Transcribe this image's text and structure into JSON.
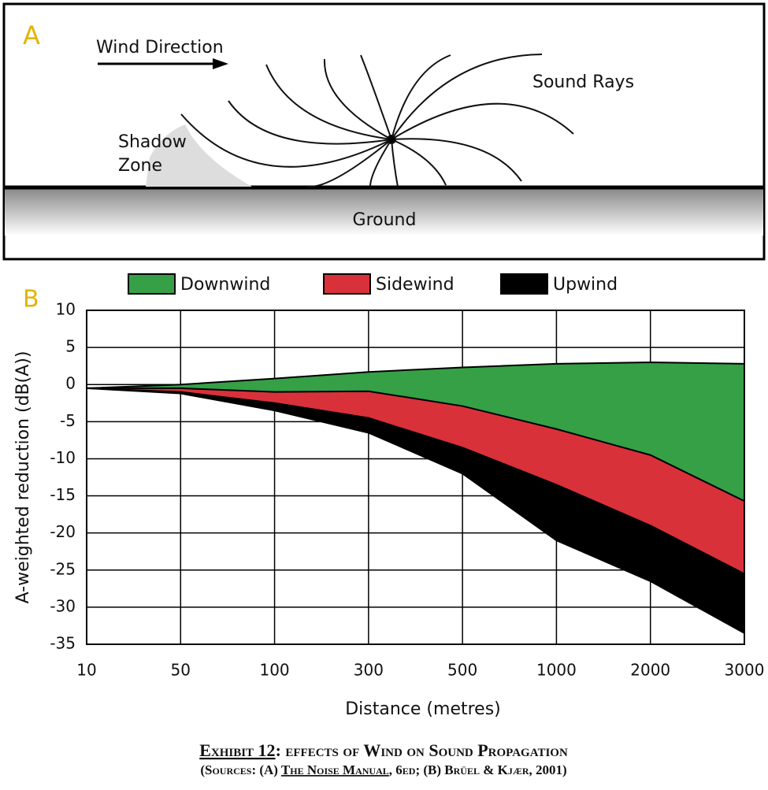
{
  "diagram": {
    "label": "A",
    "wind_direction": "Wind Direction",
    "sound_rays": "Sound Rays",
    "shadow_zone": [
      "Shadow",
      "Zone"
    ],
    "ground": "Ground"
  },
  "chart_data": {
    "type": "area",
    "label": "B",
    "x_label": "Distance (metres)",
    "y_label": "A-weighted reduction (dB(A))",
    "categories": [
      "10",
      "50",
      "100",
      "300",
      "500",
      "1000",
      "2000",
      "3000"
    ],
    "series": [
      {
        "name": "Downwind",
        "color": "#35a046",
        "values": [
          -0.5,
          0,
          0.8,
          1.7,
          2.3,
          2.8,
          3,
          2.8
        ]
      },
      {
        "name": "Sidewind",
        "color": "#d9313a",
        "values": [
          -0.5,
          -0.5,
          -1,
          -0.9,
          -2.9,
          -6,
          -9.5,
          -15.7
        ]
      },
      {
        "name": "Upwind",
        "color": "#000000",
        "values": [
          -0.5,
          -1,
          -2.5,
          -4.5,
          -8.5,
          -13.5,
          -19,
          -25.5
        ],
        "lower_values": [
          -0.5,
          -1.2,
          -3.5,
          -6.5,
          -12,
          -21,
          -26.5,
          -33.5
        ]
      }
    ],
    "ylim": [
      -35,
      10
    ],
    "yticks": [
      10,
      5,
      0,
      -5,
      -10,
      -15,
      -20,
      -25,
      -30,
      -35
    ],
    "grid": true
  },
  "caption": {
    "exhibit": "Exhibit 12",
    "title": ":  effects of Wind on Sound Propagation",
    "sources_before": "(Sources:  (A) ",
    "sources_book": "The Noise Manual",
    "sources_after": ", 6ed; (B) Brüel & Kjær, 2001)"
  }
}
